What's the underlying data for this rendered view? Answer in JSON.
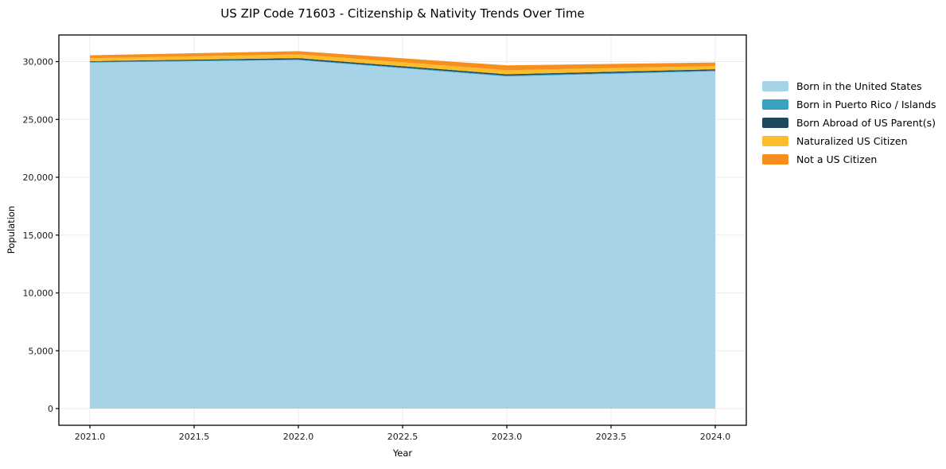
{
  "figure": {
    "background": "#ffffff",
    "spine_color": "#000000",
    "gridline_color": "#ebebeb",
    "tick_label_color": "#1a1a1a"
  },
  "chart_data": {
    "type": "area",
    "stacked": true,
    "title": "US ZIP Code 71603 - Citizenship & Nativity Trends Over Time",
    "xlabel": "Year",
    "ylabel": "Population",
    "x": [
      2021,
      2022,
      2023,
      2024
    ],
    "series": [
      {
        "name": "Born in the United States",
        "color": "#a6d3e8",
        "values": [
          29920,
          30130,
          28715,
          29165
        ]
      },
      {
        "name": "Born in Puerto Rico / Islands",
        "color": "#38a2c2",
        "values": [
          55,
          60,
          80,
          70
        ]
      },
      {
        "name": "Born Abroad of US Parent(s)",
        "color": "#20485c",
        "values": [
          65,
          110,
          110,
          105
        ]
      },
      {
        "name": "Naturalized US Citizen",
        "color": "#fcbd2c",
        "values": [
          255,
          320,
          350,
          280
        ]
      },
      {
        "name": "Not a US Citizen",
        "color": "#f78f1f",
        "values": [
          250,
          280,
          420,
          300
        ]
      }
    ],
    "totals": [
      30545,
      30900,
      29675,
      29920
    ],
    "xlim": [
      2020.85,
      2024.15
    ],
    "ylim": [
      0,
      32300
    ],
    "xtick_values": [
      2021.0,
      2021.5,
      2022.0,
      2022.5,
      2023.0,
      2023.5,
      2024.0
    ],
    "xtick_labels": [
      "2021.0",
      "2021.5",
      "2022.0",
      "2022.5",
      "2023.0",
      "2023.5",
      "2024.0"
    ],
    "ytick_values": [
      0,
      5000,
      10000,
      15000,
      20000,
      25000,
      30000
    ],
    "ytick_labels": [
      "0",
      "5,000",
      "10,000",
      "15,000",
      "20,000",
      "25,000",
      "30,000"
    ],
    "grid": true,
    "legend_position": "right-outside"
  }
}
